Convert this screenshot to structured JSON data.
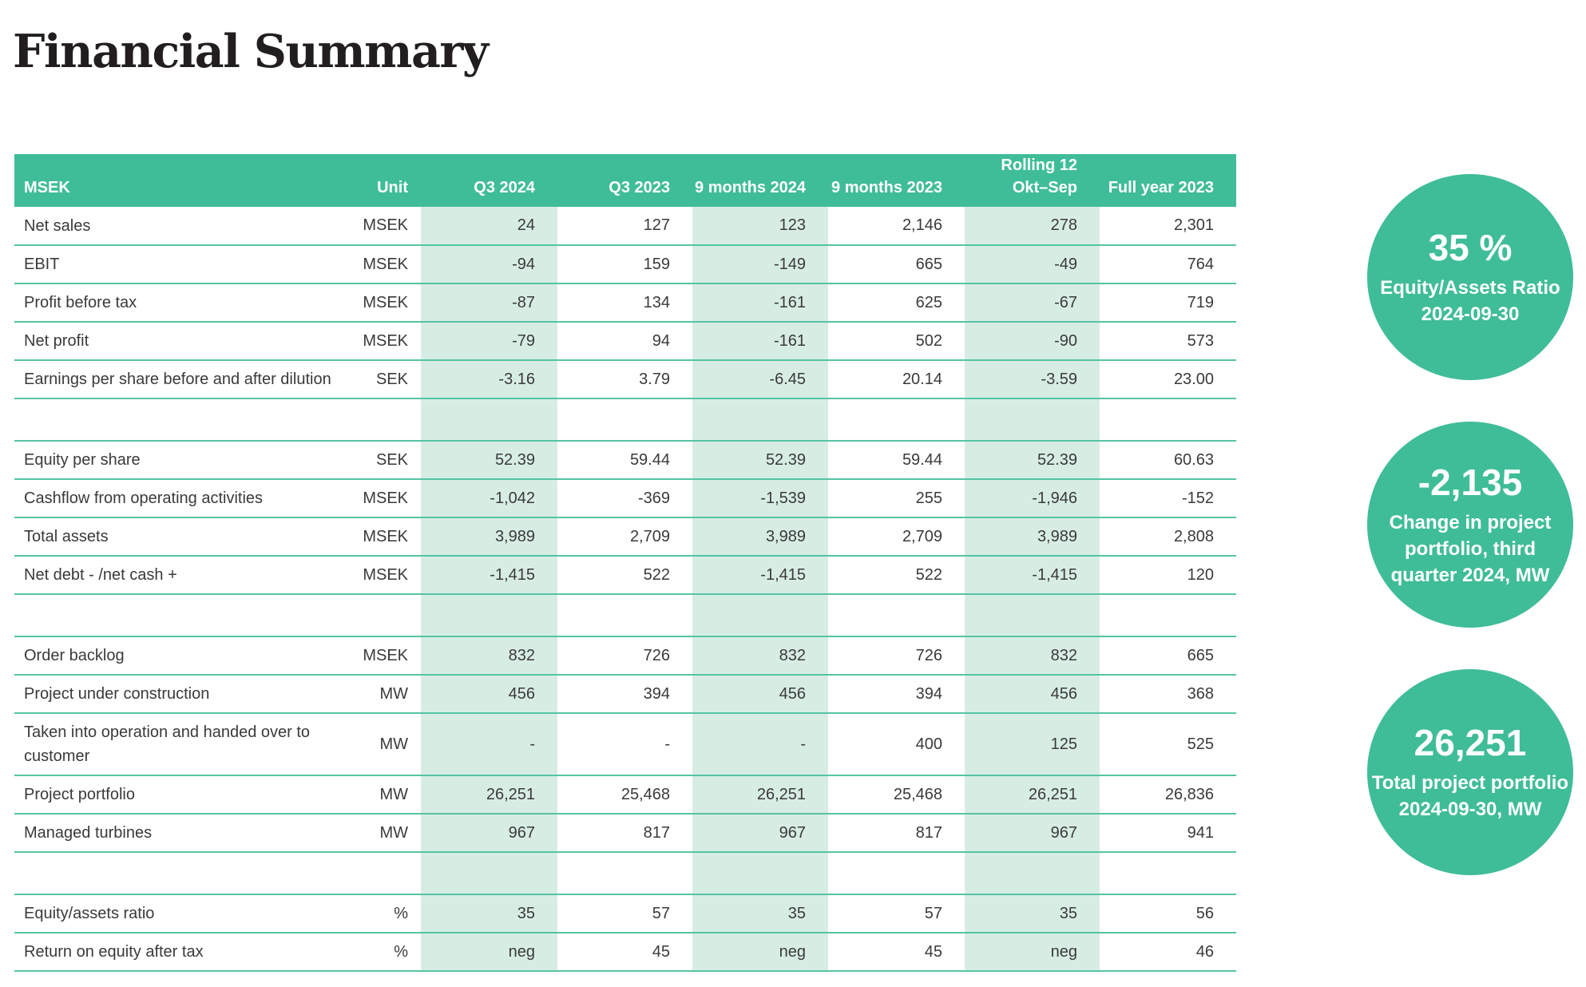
{
  "page": {
    "title": "Financial Summary"
  },
  "colors": {
    "accent": "#3FBD98",
    "column_tint": "#D7EDE4",
    "row_line": "#55C4A4",
    "body_text": "#3A3A3A",
    "header_text": "#FFFFFF"
  },
  "table": {
    "columns": [
      {
        "header": "MSEK",
        "type": "label"
      },
      {
        "header": "Unit",
        "type": "unit"
      },
      {
        "header": "Q3 2024",
        "tinted": true
      },
      {
        "header": "Q3 2023",
        "tinted": false
      },
      {
        "header": "9 months 2024",
        "tinted": true
      },
      {
        "header": "9 months 2023",
        "tinted": false
      },
      {
        "header": "Rolling 12",
        "header_line2": "Okt–Sep",
        "tinted": true
      },
      {
        "header": "Full year 2023",
        "tinted": false
      }
    ],
    "rows": [
      {
        "type": "data",
        "label": "Net sales",
        "unit": "MSEK",
        "values": [
          "24",
          "127",
          "123",
          "2,146",
          "278",
          "2,301"
        ]
      },
      {
        "type": "data",
        "label": "EBIT",
        "unit": "MSEK",
        "values": [
          "-94",
          "159",
          "-149",
          "665",
          "-49",
          "764"
        ]
      },
      {
        "type": "data",
        "label": "Profit before tax",
        "unit": "MSEK",
        "values": [
          "-87",
          "134",
          "-161",
          "625",
          "-67",
          "719"
        ]
      },
      {
        "type": "data",
        "label": "Net profit",
        "unit": "MSEK",
        "values": [
          "-79",
          "94",
          "-161",
          "502",
          "-90",
          "573"
        ]
      },
      {
        "type": "data",
        "label": "Earnings per share before and after dilution",
        "unit": "SEK",
        "values": [
          "-3.16",
          "3.79",
          "-6.45",
          "20.14",
          "-3.59",
          "23.00"
        ]
      },
      {
        "type": "spacer"
      },
      {
        "type": "data",
        "label": "Equity per share",
        "unit": "SEK",
        "values": [
          "52.39",
          "59.44",
          "52.39",
          "59.44",
          "52.39",
          "60.63"
        ]
      },
      {
        "type": "data",
        "label": "Cashflow from operating activities",
        "unit": "MSEK",
        "values": [
          "-1,042",
          "-369",
          "-1,539",
          "255",
          "-1,946",
          "-152"
        ]
      },
      {
        "type": "data",
        "label": "Total assets",
        "unit": "MSEK",
        "values": [
          "3,989",
          "2,709",
          "3,989",
          "2,709",
          "3,989",
          "2,808"
        ]
      },
      {
        "type": "data",
        "label": "Net debt - /net cash +",
        "unit": "MSEK",
        "values": [
          "-1,415",
          "522",
          "-1,415",
          "522",
          "-1,415",
          "120"
        ]
      },
      {
        "type": "spacer"
      },
      {
        "type": "data",
        "label": "Order backlog",
        "unit": "MSEK",
        "values": [
          "832",
          "726",
          "832",
          "726",
          "832",
          "665"
        ]
      },
      {
        "type": "data",
        "label": "Project under construction",
        "unit": "MW",
        "values": [
          "456",
          "394",
          "456",
          "394",
          "456",
          "368"
        ]
      },
      {
        "type": "data",
        "label": "Taken into operation and handed over to customer",
        "unit": "MW",
        "values": [
          "-",
          "-",
          "-",
          "400",
          "125",
          "525"
        ]
      },
      {
        "type": "data",
        "label": "Project portfolio",
        "unit": "MW",
        "values": [
          "26,251",
          "25,468",
          "26,251",
          "25,468",
          "26,251",
          "26,836"
        ]
      },
      {
        "type": "data",
        "label": "Managed turbines",
        "unit": "MW",
        "values": [
          "967",
          "817",
          "967",
          "817",
          "967",
          "941"
        ]
      },
      {
        "type": "spacer"
      },
      {
        "type": "data",
        "label": "Equity/assets ratio",
        "unit": "%",
        "values": [
          "35",
          "57",
          "35",
          "57",
          "35",
          "56"
        ]
      },
      {
        "type": "data",
        "label": "Return on equity after tax",
        "unit": "%",
        "values": [
          "neg",
          "45",
          "neg",
          "45",
          "neg",
          "46"
        ]
      }
    ]
  },
  "kpis": [
    {
      "value": "35 %",
      "lines": [
        "Equity/Assets Ratio",
        "2024-09-30"
      ]
    },
    {
      "value": "-2,135",
      "lines": [
        "Change in project",
        "portfolio, third",
        "quarter 2024, MW"
      ]
    },
    {
      "value": "26,251",
      "lines": [
        "Total project portfolio",
        "2024-09-30, MW"
      ]
    }
  ]
}
